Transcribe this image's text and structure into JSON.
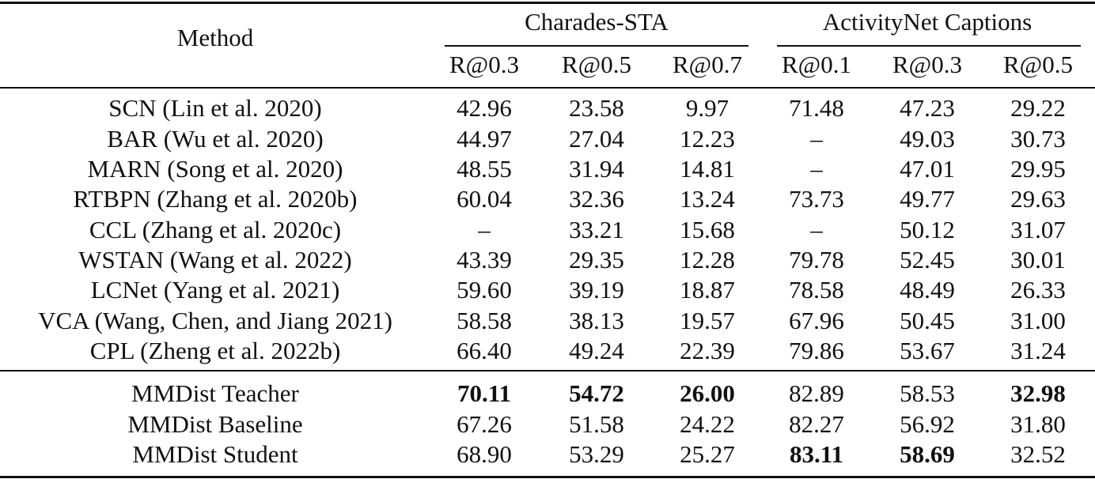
{
  "header": {
    "method": "Method",
    "groups": [
      "Charades-STA",
      "ActivityNet Captions"
    ],
    "metrics": [
      "R@0.3",
      "R@0.5",
      "R@0.7",
      "R@0.1",
      "R@0.3",
      "R@0.5"
    ]
  },
  "rows": [
    {
      "method": "SCN (Lin et al. 2020)",
      "values": [
        "42.96",
        "23.58",
        "9.97",
        "71.48",
        "47.23",
        "29.22"
      ],
      "bold": []
    },
    {
      "method": "BAR (Wu et al. 2020)",
      "values": [
        "44.97",
        "27.04",
        "12.23",
        "–",
        "49.03",
        "30.73"
      ],
      "bold": []
    },
    {
      "method": "MARN (Song et al. 2020)",
      "values": [
        "48.55",
        "31.94",
        "14.81",
        "–",
        "47.01",
        "29.95"
      ],
      "bold": []
    },
    {
      "method": "RTBPN (Zhang et al. 2020b)",
      "values": [
        "60.04",
        "32.36",
        "13.24",
        "73.73",
        "49.77",
        "29.63"
      ],
      "bold": []
    },
    {
      "method": "CCL (Zhang et al. 2020c)",
      "values": [
        "–",
        "33.21",
        "15.68",
        "–",
        "50.12",
        "31.07"
      ],
      "bold": []
    },
    {
      "method": "WSTAN (Wang et al. 2022)",
      "values": [
        "43.39",
        "29.35",
        "12.28",
        "79.78",
        "52.45",
        "30.01"
      ],
      "bold": []
    },
    {
      "method": "LCNet (Yang et al. 2021)",
      "values": [
        "59.60",
        "39.19",
        "18.87",
        "78.58",
        "48.49",
        "26.33"
      ],
      "bold": []
    },
    {
      "method": "VCA (Wang, Chen, and Jiang 2021)",
      "values": [
        "58.58",
        "38.13",
        "19.57",
        "67.96",
        "50.45",
        "31.00"
      ],
      "bold": []
    },
    {
      "method": "CPL (Zheng et al. 2022b)",
      "values": [
        "66.40",
        "49.24",
        "22.39",
        "79.86",
        "53.67",
        "31.24"
      ],
      "bold": []
    },
    {
      "method": "MMDist Teacher",
      "values": [
        "70.11",
        "54.72",
        "26.00",
        "82.89",
        "58.53",
        "32.98"
      ],
      "bold": [
        0,
        1,
        2,
        5
      ]
    },
    {
      "method": "MMDist Baseline",
      "values": [
        "67.26",
        "51.58",
        "24.22",
        "82.27",
        "56.92",
        "31.80"
      ],
      "bold": []
    },
    {
      "method": "MMDist Student",
      "values": [
        "68.90",
        "53.29",
        "25.27",
        "83.11",
        "58.69",
        "32.52"
      ],
      "bold": [
        3,
        4
      ]
    }
  ]
}
